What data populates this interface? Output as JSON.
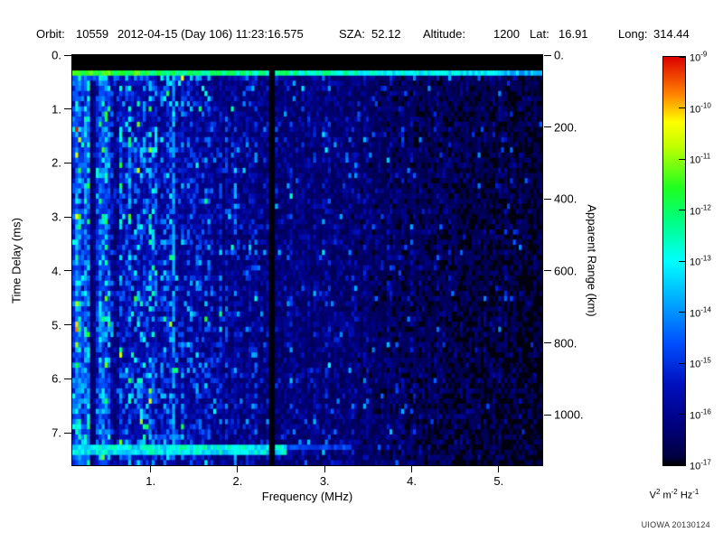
{
  "header": {
    "orbit_label": "Orbit:",
    "orbit": "10559",
    "datetime": "2012-04-15 (Day 106) 11:23:16.575",
    "sza_label": "SZA:",
    "sza": "52.12",
    "altitude_label": "Altitude:",
    "altitude": "1200",
    "lat_label": "Lat:",
    "lat": "16.91",
    "long_label": "Long:",
    "long": "314.44"
  },
  "chart_data": {
    "type": "heatmap",
    "title": "",
    "xlabel": "Frequency (MHz)",
    "ylabel_left": "Time Delay (ms)",
    "ylabel_right": "Apparent Range (km)",
    "x_range_mhz": [
      0.1,
      5.5
    ],
    "y_range_ms": [
      0,
      7.6
    ],
    "range_km_per_ms": 150,
    "x_ticks": [
      {
        "value": 1,
        "label": "1."
      },
      {
        "value": 2,
        "label": "2."
      },
      {
        "value": 3,
        "label": "3."
      },
      {
        "value": 4,
        "label": "4."
      },
      {
        "value": 5,
        "label": "5."
      }
    ],
    "y_ticks_left": [
      {
        "value": 0,
        "label": "0."
      },
      {
        "value": 1,
        "label": "1."
      },
      {
        "value": 2,
        "label": "2."
      },
      {
        "value": 3,
        "label": "3."
      },
      {
        "value": 4,
        "label": "4."
      },
      {
        "value": 5,
        "label": "5."
      },
      {
        "value": 6,
        "label": "6."
      },
      {
        "value": 7,
        "label": "7."
      }
    ],
    "y_ticks_right": [
      {
        "value": 0,
        "label": "0."
      },
      {
        "value": 200,
        "label": "200."
      },
      {
        "value": 400,
        "label": "400."
      },
      {
        "value": 600,
        "label": "600."
      },
      {
        "value": 800,
        "label": "800."
      },
      {
        "value": 1000,
        "label": "1000."
      }
    ],
    "colorbar": {
      "scale": "log",
      "min": "1e-17",
      "max": "1e-9",
      "tick_base": "10",
      "tick_exponents": [
        "-9",
        "-10",
        "-11",
        "-12",
        "-13",
        "-14",
        "-15",
        "-16",
        "-17"
      ],
      "unit_parts": [
        {
          "base": "V",
          "exp": "2"
        },
        {
          "base": " m",
          "exp": "-2"
        },
        {
          "base": " Hz",
          "exp": "-1"
        }
      ]
    },
    "colormap": [
      [
        0.0,
        "#000000"
      ],
      [
        0.02,
        "#000040"
      ],
      [
        0.1,
        "#000080"
      ],
      [
        0.2,
        "#0010c0"
      ],
      [
        0.3,
        "#0050ff"
      ],
      [
        0.4,
        "#00a8ff"
      ],
      [
        0.5,
        "#00ffff"
      ],
      [
        0.6,
        "#00ff80"
      ],
      [
        0.68,
        "#20ff20"
      ],
      [
        0.78,
        "#c0ff00"
      ],
      [
        0.84,
        "#ffff00"
      ],
      [
        0.91,
        "#ff8000"
      ],
      [
        1.0,
        "#dd0000"
      ]
    ],
    "render": {
      "seed": 20130124,
      "n_freq": 160,
      "n_time": 80
    },
    "features": [
      "black transmitter blanking band from 0 to ~0.28 ms across all frequencies",
      "bright horizontal receiver-response echo line at ~0.3 ms, green/yellow at low frequency fading to cyan at high frequency",
      "intense low-frequency plasma noise (cyan/green speckle) below ~0.55 MHz spanning all delays",
      "narrow dark vertical gaps near 0.33 MHz and 0.6 MHz",
      "thin vertical cyan interference line at ~1.27 MHz spanning most delays",
      "black vertical notch (no signal) at ~2.4 MHz spanning full delay range",
      "bright horizontal ground/echo line at ~7.35 ms extending from 0.1 to ~2.6 MHz, fainter to ~3.3 MHz",
      "background blue speckle noise whose intensity decreases with frequency, becoming black-speckled above ~4 MHz"
    ]
  },
  "footer": {
    "credit": "UIOWA 20130124"
  }
}
